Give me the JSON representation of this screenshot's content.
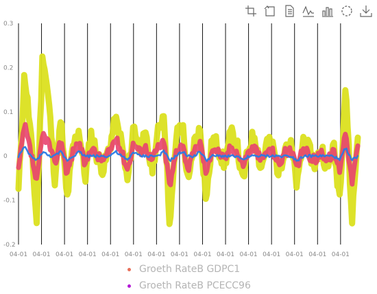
{
  "toolbar": {
    "icons": [
      "zoom-icon",
      "zoom-reset-icon",
      "data-view-icon",
      "line-chart-icon",
      "bar-chart-icon",
      "restore-icon",
      "download-icon"
    ],
    "color": "#666666"
  },
  "chart_data": {
    "type": "line",
    "title": "",
    "xlabel": "",
    "ylabel": "",
    "ylim": [
      -0.2,
      0.3
    ],
    "yticks": [
      "0.3",
      "0.2",
      "0.1",
      "0",
      "-0.1",
      "-0.2"
    ],
    "xtick_labels": [
      "04-01",
      "04-01",
      "04-01",
      "04-01",
      "04-01",
      "04-01",
      "04-01",
      "04-01",
      "04-01",
      "04-01",
      "04-01",
      "04-01",
      "04-01",
      "04-01",
      "04-01"
    ],
    "n_points": 300,
    "grid": "vertical",
    "legend_position": "bottom",
    "series": [
      {
        "name": "",
        "color": "#dbe01f",
        "description": "broad yellow band",
        "values": [
          -0.08,
          0.19,
          0.05,
          -0.15,
          0.24,
          0.12,
          -0.05,
          0.08,
          -0.1,
          0.02,
          0.06,
          -0.05,
          0.05,
          0.0,
          -0.03,
          0.02,
          0.08,
          0.03,
          -0.06,
          0.07,
          0.02,
          0.04,
          -0.03,
          0.05,
          0.1,
          -0.16,
          0.04,
          0.08,
          -0.07,
          0.03,
          0.06,
          -0.1,
          0.04,
          0.02,
          -0.02,
          0.05,
          0.03,
          -0.06,
          0.02,
          0.05,
          -0.03,
          0.03,
          0.02,
          -0.04,
          0.03,
          0.02,
          -0.07,
          0.04,
          0.01,
          -0.02,
          0.02,
          -0.03,
          0.02,
          -0.09,
          0.17,
          -0.15,
          0.05
        ]
      },
      {
        "name": "Groeth RateB GDPC1",
        "color": "#e8436f",
        "description": "pink band",
        "values": [
          -0.03,
          0.07,
          0.01,
          -0.06,
          0.05,
          0.03,
          -0.02,
          0.04,
          -0.04,
          0.01,
          0.03,
          -0.02,
          0.02,
          0.0,
          -0.01,
          0.01,
          0.04,
          0.01,
          -0.03,
          0.03,
          0.01,
          0.02,
          -0.01,
          0.02,
          0.03,
          -0.07,
          0.01,
          0.03,
          -0.03,
          0.01,
          0.03,
          -0.04,
          0.02,
          0.01,
          -0.01,
          0.02,
          0.01,
          -0.02,
          0.01,
          0.02,
          -0.01,
          0.01,
          0.01,
          -0.02,
          0.01,
          0.01,
          -0.03,
          0.02,
          0.0,
          -0.01,
          0.01,
          -0.01,
          0.01,
          -0.03,
          0.06,
          -0.06,
          0.02
        ]
      },
      {
        "name": "Groeth RateB PCECC96",
        "color": "#2a7be4",
        "description": "thin blue line",
        "values": [
          0.0,
          0.02,
          0.0,
          -0.01,
          0.01,
          0.0,
          0.0,
          0.01,
          -0.01,
          0.0,
          0.01,
          0.0,
          0.0,
          0.0,
          0.0,
          0.0,
          0.01,
          0.0,
          -0.01,
          0.01,
          0.0,
          0.0,
          0.0,
          0.0,
          0.01,
          -0.01,
          0.0,
          0.01,
          0.0,
          0.0,
          0.01,
          -0.01,
          0.0,
          0.0,
          0.0,
          0.0,
          0.0,
          -0.01,
          0.0,
          0.0,
          0.0,
          0.0,
          0.0,
          0.0,
          0.0,
          0.0,
          -0.01,
          0.0,
          0.0,
          0.0,
          0.0,
          0.0,
          0.0,
          -0.01,
          0.02,
          -0.01,
          0.0
        ]
      }
    ],
    "legend": [
      {
        "label": "Groeth RateB GDPC1",
        "color": "#e8705a"
      },
      {
        "label": "Groeth RateB PCECC96",
        "color": "#b41ad6"
      }
    ]
  }
}
